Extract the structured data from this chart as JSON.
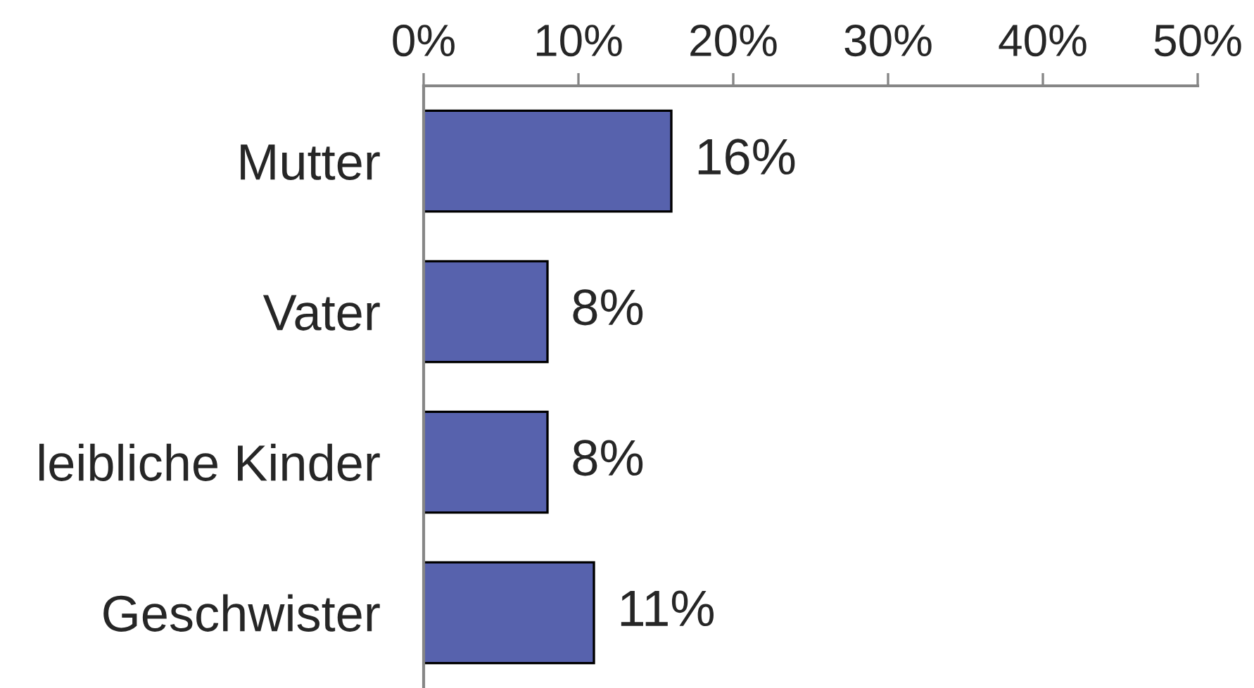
{
  "chart_data": {
    "type": "bar",
    "orientation": "horizontal",
    "categories": [
      "Mutter",
      "Vater",
      "leibliche Kinder",
      "Geschwister"
    ],
    "values": [
      16,
      8,
      8,
      11
    ],
    "value_labels": [
      "16%",
      "8%",
      "8%",
      "11%"
    ],
    "color": "#5762ad",
    "xlim": [
      0,
      50
    ],
    "xticks": [
      {
        "value": 0,
        "label": "0%"
      },
      {
        "value": 10,
        "label": "10%"
      },
      {
        "value": 20,
        "label": "20%"
      },
      {
        "value": 30,
        "label": "30%"
      },
      {
        "value": 40,
        "label": "40%"
      },
      {
        "value": 50,
        "label": "50%"
      }
    ]
  }
}
